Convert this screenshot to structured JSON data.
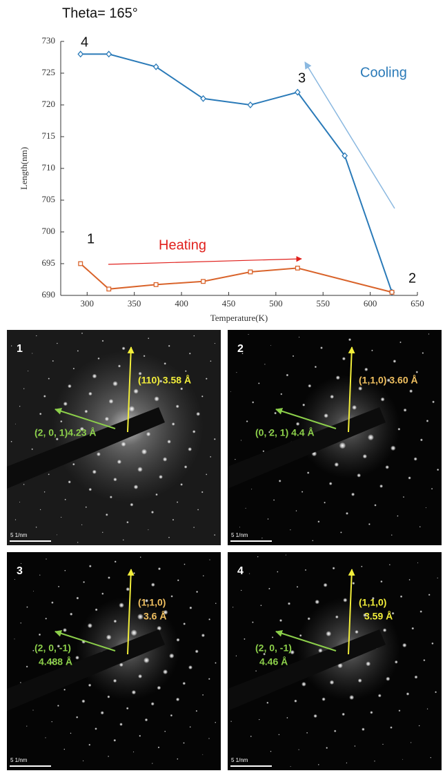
{
  "chart_data": {
    "type": "line",
    "title": "Theta= 165°",
    "xlabel": "Temperature(K)",
    "ylabel": "Length(nm)",
    "series": [
      {
        "name": "Cooling",
        "color": "#2a7ab8",
        "marker": "diamond",
        "x": [
          293,
          323,
          373,
          423,
          473,
          523,
          573,
          623
        ],
        "values": [
          728,
          728,
          726,
          721,
          720,
          722,
          712,
          690.5
        ]
      },
      {
        "name": "Heating",
        "color": "#d9632a",
        "marker": "square",
        "x": [
          293,
          323,
          373,
          423,
          473,
          523,
          623
        ],
        "values": [
          695,
          691,
          691.7,
          692.2,
          693.7,
          694.3,
          690.5
        ]
      }
    ],
    "xlim": [
      272,
      650
    ],
    "xticks": [
      300,
      350,
      400,
      450,
      500,
      550,
      600,
      650
    ],
    "ylim": [
      690,
      730
    ],
    "yticks": [
      690,
      695,
      700,
      705,
      710,
      715,
      720,
      725,
      730
    ],
    "grid": false,
    "annotations": [
      {
        "text": "1"
      },
      {
        "text": "2"
      },
      {
        "text": "3"
      },
      {
        "text": "4"
      },
      {
        "text": "Heating",
        "color": "#e0201c"
      },
      {
        "text": "Cooling",
        "color": "#2a7ab8"
      }
    ]
  },
  "panels": [
    {
      "label": "1",
      "plane_a": [
        "(110) 3.58 Å"
      ],
      "plane_a_color": "#f2ee3a",
      "plane_b": [
        "(2, 0, 1)4.23 Å"
      ],
      "scale": "5 1/nm"
    },
    {
      "label": "2",
      "plane_a": [
        "(1,1,0) 3.60 Å"
      ],
      "plane_a_color": "#f0c060",
      "plane_b": [
        "(0, 2, 1) 4.4 Å"
      ],
      "scale": "5 1/nm"
    },
    {
      "label": "3",
      "plane_a": [
        "(1,1,0)",
        "3.6 Å"
      ],
      "plane_a_color": "#f0c060",
      "plane_b": [
        "(2, 0, -1)",
        "4.488 Å"
      ],
      "scale": "5 1/nm"
    },
    {
      "label": "4",
      "plane_a": [
        "(1,1,0)",
        "3.59 Å"
      ],
      "plane_a_color": "#f2ee3a",
      "plane_b": [
        "(2, 0, -1)",
        "4.46 Å"
      ],
      "scale": "5 1/nm"
    }
  ]
}
